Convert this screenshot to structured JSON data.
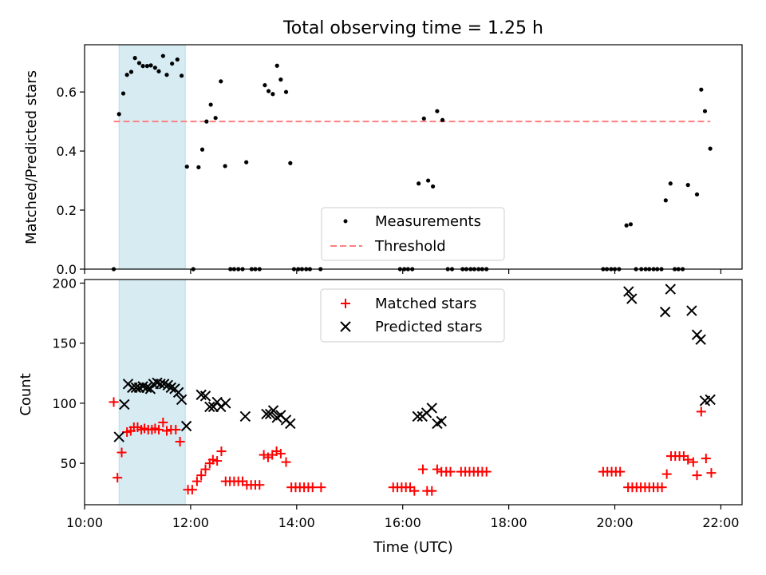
{
  "chart_data": [
    {
      "type": "scatter",
      "title": "Total observing time = 1.25 h",
      "xlabel": "",
      "ylabel": "Matched/Predicted stars",
      "xlim": [
        10.0,
        22.4
      ],
      "ylim": [
        0,
        0.76
      ],
      "yticks": [
        0.0,
        0.2,
        0.4,
        0.6
      ],
      "ytick_labels": [
        "0.0",
        "0.2",
        "0.4",
        "0.6"
      ],
      "shaded_x_range": [
        10.65,
        11.9
      ],
      "shaded_color": "#add8e6",
      "grid": false,
      "legend_position": "lower center",
      "series": [
        {
          "name": "Measurements",
          "marker": "dot",
          "color": "#000000",
          "points": [
            [
              10.55,
              0.0
            ],
            [
              10.65,
              0.525
            ],
            [
              10.73,
              0.595
            ],
            [
              10.8,
              0.658
            ],
            [
              10.88,
              0.668
            ],
            [
              10.95,
              0.715
            ],
            [
              11.03,
              0.698
            ],
            [
              11.1,
              0.688
            ],
            [
              11.18,
              0.688
            ],
            [
              11.25,
              0.69
            ],
            [
              11.33,
              0.682
            ],
            [
              11.4,
              0.67
            ],
            [
              11.48,
              0.722
            ],
            [
              11.55,
              0.658
            ],
            [
              11.65,
              0.696
            ],
            [
              11.75,
              0.71
            ],
            [
              11.83,
              0.655
            ],
            [
              11.93,
              0.347
            ],
            [
              12.05,
              0.0
            ],
            [
              12.15,
              0.345
            ],
            [
              12.22,
              0.405
            ],
            [
              12.3,
              0.5
            ],
            [
              12.38,
              0.557
            ],
            [
              12.47,
              0.512
            ],
            [
              12.57,
              0.636
            ],
            [
              12.65,
              0.349
            ],
            [
              12.75,
              0.0
            ],
            [
              12.82,
              0.0
            ],
            [
              12.9,
              0.0
            ],
            [
              12.98,
              0.0
            ],
            [
              13.05,
              0.362
            ],
            [
              13.15,
              0.0
            ],
            [
              13.22,
              0.0
            ],
            [
              13.3,
              0.0
            ],
            [
              13.4,
              0.623
            ],
            [
              13.47,
              0.603
            ],
            [
              13.55,
              0.593
            ],
            [
              13.63,
              0.689
            ],
            [
              13.7,
              0.642
            ],
            [
              13.8,
              0.6
            ],
            [
              13.88,
              0.359
            ],
            [
              13.95,
              0.0
            ],
            [
              14.03,
              0.0
            ],
            [
              14.1,
              0.0
            ],
            [
              14.18,
              0.0
            ],
            [
              14.25,
              0.0
            ],
            [
              14.45,
              0.0
            ],
            [
              15.95,
              0.0
            ],
            [
              16.03,
              0.0
            ],
            [
              16.1,
              0.0
            ],
            [
              16.18,
              0.0
            ],
            [
              16.3,
              0.29
            ],
            [
              16.4,
              0.51
            ],
            [
              16.48,
              0.3
            ],
            [
              16.57,
              0.28
            ],
            [
              16.65,
              0.535
            ],
            [
              16.75,
              0.505
            ],
            [
              16.85,
              0.0
            ],
            [
              16.93,
              0.0
            ],
            [
              17.13,
              0.0
            ],
            [
              17.2,
              0.0
            ],
            [
              17.28,
              0.0
            ],
            [
              17.35,
              0.0
            ],
            [
              17.43,
              0.0
            ],
            [
              17.5,
              0.0
            ],
            [
              17.58,
              0.0
            ],
            [
              19.78,
              0.0
            ],
            [
              19.85,
              0.0
            ],
            [
              19.93,
              0.0
            ],
            [
              20.0,
              0.0
            ],
            [
              20.08,
              0.0
            ],
            [
              20.22,
              0.148
            ],
            [
              20.3,
              0.152
            ],
            [
              20.4,
              0.0
            ],
            [
              20.5,
              0.0
            ],
            [
              20.58,
              0.0
            ],
            [
              20.65,
              0.0
            ],
            [
              20.73,
              0.0
            ],
            [
              20.8,
              0.0
            ],
            [
              20.88,
              0.0
            ],
            [
              20.96,
              0.233
            ],
            [
              21.05,
              0.29
            ],
            [
              21.13,
              0.0
            ],
            [
              21.2,
              0.0
            ],
            [
              21.28,
              0.0
            ],
            [
              21.38,
              0.285
            ],
            [
              21.55,
              0.253
            ],
            [
              21.63,
              0.608
            ],
            [
              21.7,
              0.535
            ],
            [
              21.8,
              0.408
            ]
          ]
        },
        {
          "name": "Threshold",
          "marker": "dashed-line",
          "color": "#ff7f7f",
          "x": [
            10.55,
            21.8
          ],
          "y": [
            0.5,
            0.5
          ]
        }
      ]
    },
    {
      "type": "scatter",
      "title": "",
      "xlabel": "Time (UTC)",
      "ylabel": "Count",
      "xlim": [
        10.0,
        22.4
      ],
      "ylim": [
        15.5,
        203
      ],
      "xticks": [
        10,
        12,
        14,
        16,
        18,
        20,
        22
      ],
      "xtick_labels": [
        "10:00",
        "12:00",
        "14:00",
        "16:00",
        "18:00",
        "20:00",
        "22:00"
      ],
      "yticks": [
        50,
        100,
        150,
        200
      ],
      "ytick_labels": [
        "50",
        "100",
        "150",
        "200"
      ],
      "shaded_x_range": [
        10.65,
        11.9
      ],
      "shaded_color": "#add8e6",
      "grid": false,
      "legend_position": "upper center",
      "series": [
        {
          "name": "Matched stars",
          "marker": "plus",
          "color": "#ff0000",
          "points": [
            [
              10.55,
              101
            ],
            [
              10.62,
              38
            ],
            [
              10.7,
              59
            ],
            [
              10.8,
              76
            ],
            [
              10.87,
              77
            ],
            [
              10.93,
              80
            ],
            [
              11.0,
              80
            ],
            [
              11.07,
              78
            ],
            [
              11.13,
              79
            ],
            [
              11.2,
              78
            ],
            [
              11.27,
              78
            ],
            [
              11.33,
              79
            ],
            [
              11.4,
              78
            ],
            [
              11.48,
              84
            ],
            [
              11.55,
              77
            ],
            [
              11.63,
              78
            ],
            [
              11.72,
              78
            ],
            [
              11.8,
              68
            ],
            [
              11.95,
              28
            ],
            [
              12.03,
              28
            ],
            [
              12.12,
              35
            ],
            [
              12.2,
              40
            ],
            [
              12.28,
              45
            ],
            [
              12.36,
              50
            ],
            [
              12.42,
              53
            ],
            [
              12.5,
              52
            ],
            [
              12.58,
              60
            ],
            [
              12.66,
              35
            ],
            [
              12.74,
              35
            ],
            [
              12.82,
              35
            ],
            [
              12.9,
              35
            ],
            [
              12.98,
              35
            ],
            [
              13.06,
              32
            ],
            [
              13.14,
              32
            ],
            [
              13.22,
              32
            ],
            [
              13.3,
              32
            ],
            [
              13.38,
              57
            ],
            [
              13.46,
              55
            ],
            [
              13.54,
              57
            ],
            [
              13.62,
              60
            ],
            [
              13.7,
              58
            ],
            [
              13.8,
              51
            ],
            [
              13.9,
              30
            ],
            [
              13.98,
              30
            ],
            [
              14.06,
              30
            ],
            [
              14.14,
              30
            ],
            [
              14.22,
              30
            ],
            [
              14.3,
              30
            ],
            [
              14.46,
              30
            ],
            [
              15.82,
              30
            ],
            [
              15.9,
              30
            ],
            [
              15.98,
              30
            ],
            [
              16.06,
              30
            ],
            [
              16.14,
              30
            ],
            [
              16.22,
              27
            ],
            [
              16.38,
              45
            ],
            [
              16.46,
              27
            ],
            [
              16.55,
              27
            ],
            [
              16.65,
              45
            ],
            [
              16.73,
              43
            ],
            [
              16.82,
              43
            ],
            [
              16.9,
              43
            ],
            [
              17.1,
              43
            ],
            [
              17.18,
              43
            ],
            [
              17.26,
              43
            ],
            [
              17.34,
              43
            ],
            [
              17.42,
              43
            ],
            [
              17.5,
              43
            ],
            [
              17.58,
              43
            ],
            [
              19.78,
              43
            ],
            [
              19.86,
              43
            ],
            [
              19.94,
              43
            ],
            [
              20.02,
              43
            ],
            [
              20.1,
              43
            ],
            [
              20.25,
              30
            ],
            [
              20.33,
              30
            ],
            [
              20.41,
              30
            ],
            [
              20.49,
              30
            ],
            [
              20.57,
              30
            ],
            [
              20.65,
              30
            ],
            [
              20.73,
              30
            ],
            [
              20.81,
              30
            ],
            [
              20.89,
              30
            ],
            [
              20.98,
              41
            ],
            [
              21.06,
              56
            ],
            [
              21.14,
              56
            ],
            [
              21.22,
              56
            ],
            [
              21.3,
              56
            ],
            [
              21.38,
              53
            ],
            [
              21.48,
              51
            ],
            [
              21.55,
              40
            ],
            [
              21.63,
              93
            ],
            [
              21.72,
              54
            ],
            [
              21.82,
              42
            ]
          ]
        },
        {
          "name": "Predicted stars",
          "marker": "x",
          "color": "#000000",
          "points": [
            [
              10.65,
              72
            ],
            [
              10.75,
              99
            ],
            [
              10.82,
              116
            ],
            [
              10.9,
              113
            ],
            [
              10.97,
              113
            ],
            [
              11.03,
              113
            ],
            [
              11.1,
              114
            ],
            [
              11.17,
              113
            ],
            [
              11.24,
              112
            ],
            [
              11.3,
              116
            ],
            [
              11.37,
              117
            ],
            [
              11.43,
              116
            ],
            [
              11.5,
              116
            ],
            [
              11.57,
              115
            ],
            [
              11.63,
              113
            ],
            [
              11.7,
              112
            ],
            [
              11.77,
              109
            ],
            [
              11.83,
              103
            ],
            [
              11.92,
              81
            ],
            [
              12.2,
              107
            ],
            [
              12.28,
              106
            ],
            [
              12.36,
              97
            ],
            [
              12.43,
              97
            ],
            [
              12.5,
              101
            ],
            [
              12.57,
              97
            ],
            [
              12.66,
              100
            ],
            [
              13.03,
              89
            ],
            [
              13.43,
              91
            ],
            [
              13.5,
              91
            ],
            [
              13.56,
              94
            ],
            [
              13.63,
              88
            ],
            [
              13.7,
              90
            ],
            [
              13.8,
              86
            ],
            [
              13.88,
              83
            ],
            [
              16.28,
              89
            ],
            [
              16.37,
              89
            ],
            [
              16.45,
              92
            ],
            [
              16.55,
              96
            ],
            [
              16.65,
              83
            ],
            [
              16.73,
              85
            ],
            [
              20.26,
              193
            ],
            [
              20.32,
              187
            ],
            [
              20.95,
              176
            ],
            [
              21.05,
              195
            ],
            [
              21.45,
              177
            ],
            [
              21.55,
              157
            ],
            [
              21.62,
              153
            ],
            [
              21.7,
              102
            ],
            [
              21.8,
              103
            ]
          ]
        }
      ]
    }
  ]
}
